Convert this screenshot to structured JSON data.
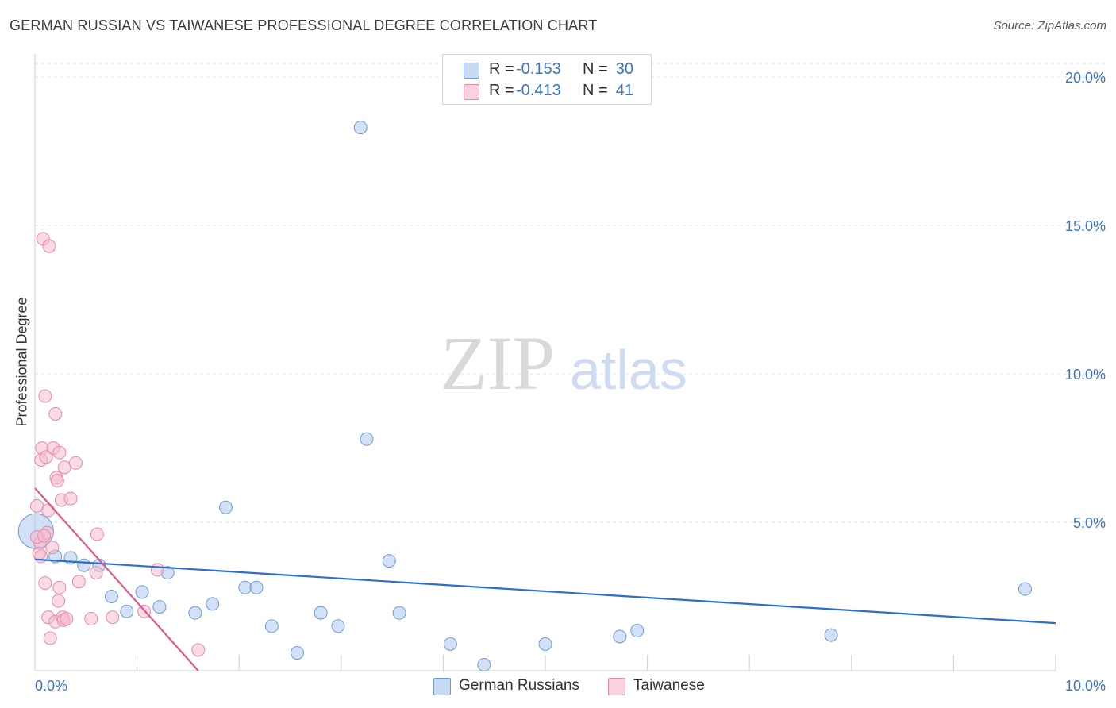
{
  "header": {
    "title": "GERMAN RUSSIAN VS TAIWANESE PROFESSIONAL DEGREE CORRELATION CHART",
    "source": "Source: ZipAtlas.com"
  },
  "watermark": {
    "zip": "ZIP",
    "atlas": "atlas"
  },
  "legend_top": {
    "rows": [
      {
        "r_label": "R =",
        "r_value": "-0.153",
        "n_label": "N =",
        "n_value": "30",
        "color": "#aec8ee"
      },
      {
        "r_label": "R =",
        "r_value": "-0.413",
        "n_label": "N =",
        "n_value": "41",
        "color": "#f6bcd0"
      }
    ]
  },
  "legend_bottom": {
    "items": [
      {
        "label": "German Russians",
        "color": "#aec8ee"
      },
      {
        "label": "Taiwanese",
        "color": "#f6bcd0"
      }
    ]
  },
  "chart_data": {
    "type": "scatter",
    "title": "GERMAN RUSSIAN VS TAIWANESE PROFESSIONAL DEGREE CORRELATION CHART",
    "xlabel": "",
    "ylabel": "Professional Degree",
    "xlim": [
      0,
      10
    ],
    "ylim": [
      0,
      20
    ],
    "x_tick_labels": [
      "0.0%",
      "10.0%"
    ],
    "y_tick_labels": [
      {
        "value": 20,
        "label": "20.0%"
      },
      {
        "value": 15,
        "label": "15.0%"
      },
      {
        "value": 10,
        "label": "10.0%"
      },
      {
        "value": 5,
        "label": "5.0%"
      }
    ],
    "grid": true,
    "series": [
      {
        "name": "German Russians",
        "color": "#aec8ee",
        "stroke": "#6f9ad6",
        "line_color": "#2b6fce",
        "trend": {
          "x0": 0,
          "y0": 3.75,
          "x1": 10,
          "y1": 1.6
        },
        "points": [
          {
            "x": 0.01,
            "y": 4.7,
            "big": true
          },
          {
            "x": 0.2,
            "y": 3.85
          },
          {
            "x": 0.35,
            "y": 3.8
          },
          {
            "x": 0.48,
            "y": 3.55
          },
          {
            "x": 0.63,
            "y": 3.55
          },
          {
            "x": 0.75,
            "y": 2.5
          },
          {
            "x": 0.9,
            "y": 2.0
          },
          {
            "x": 1.05,
            "y": 2.65
          },
          {
            "x": 1.22,
            "y": 2.15
          },
          {
            "x": 1.3,
            "y": 3.3
          },
          {
            "x": 1.57,
            "y": 1.95
          },
          {
            "x": 1.74,
            "y": 2.25
          },
          {
            "x": 1.87,
            "y": 5.5
          },
          {
            "x": 2.06,
            "y": 2.8
          },
          {
            "x": 2.17,
            "y": 2.8
          },
          {
            "x": 2.32,
            "y": 1.5
          },
          {
            "x": 2.57,
            "y": 0.6
          },
          {
            "x": 2.8,
            "y": 1.95
          },
          {
            "x": 2.97,
            "y": 1.5
          },
          {
            "x": 3.19,
            "y": 18.3
          },
          {
            "x": 3.25,
            "y": 7.8
          },
          {
            "x": 3.47,
            "y": 3.7
          },
          {
            "x": 3.57,
            "y": 1.95
          },
          {
            "x": 4.07,
            "y": 0.9
          },
          {
            "x": 4.4,
            "y": 0.2
          },
          {
            "x": 5.0,
            "y": 0.9
          },
          {
            "x": 5.73,
            "y": 1.15
          },
          {
            "x": 5.9,
            "y": 1.35
          },
          {
            "x": 7.8,
            "y": 1.2
          },
          {
            "x": 9.7,
            "y": 2.75
          }
        ]
      },
      {
        "name": "Taiwanese",
        "color": "#f6bcd0",
        "stroke": "#e88aaa",
        "line_color": "#e2578a",
        "trend": {
          "x0": 0,
          "y0": 6.15,
          "x1": 1.6,
          "y1": 0.0
        },
        "points": [
          {
            "x": 0.02,
            "y": 5.55
          },
          {
            "x": 0.05,
            "y": 4.3
          },
          {
            "x": 0.06,
            "y": 7.1
          },
          {
            "x": 0.07,
            "y": 7.5
          },
          {
            "x": 0.06,
            "y": 3.85
          },
          {
            "x": 0.08,
            "y": 14.55
          },
          {
            "x": 0.12,
            "y": 4.65
          },
          {
            "x": 0.11,
            "y": 7.2
          },
          {
            "x": 0.1,
            "y": 2.95
          },
          {
            "x": 0.1,
            "y": 9.25
          },
          {
            "x": 0.14,
            "y": 14.3
          },
          {
            "x": 0.13,
            "y": 5.4
          },
          {
            "x": 0.13,
            "y": 1.8
          },
          {
            "x": 0.15,
            "y": 1.1
          },
          {
            "x": 0.17,
            "y": 4.15
          },
          {
            "x": 0.18,
            "y": 7.5
          },
          {
            "x": 0.2,
            "y": 8.65
          },
          {
            "x": 0.21,
            "y": 6.5
          },
          {
            "x": 0.22,
            "y": 6.4
          },
          {
            "x": 0.2,
            "y": 1.65
          },
          {
            "x": 0.23,
            "y": 2.35
          },
          {
            "x": 0.24,
            "y": 2.8
          },
          {
            "x": 0.24,
            "y": 7.35
          },
          {
            "x": 0.26,
            "y": 5.75
          },
          {
            "x": 0.27,
            "y": 1.8
          },
          {
            "x": 0.28,
            "y": 1.7
          },
          {
            "x": 0.29,
            "y": 6.85
          },
          {
            "x": 0.31,
            "y": 1.75
          },
          {
            "x": 0.35,
            "y": 5.8
          },
          {
            "x": 0.4,
            "y": 7.0
          },
          {
            "x": 0.43,
            "y": 3.0
          },
          {
            "x": 0.55,
            "y": 1.75
          },
          {
            "x": 0.6,
            "y": 3.3
          },
          {
            "x": 0.61,
            "y": 4.6
          },
          {
            "x": 0.76,
            "y": 1.8
          },
          {
            "x": 1.07,
            "y": 2.0
          },
          {
            "x": 1.2,
            "y": 3.4
          },
          {
            "x": 1.6,
            "y": 0.7
          },
          {
            "x": 0.02,
            "y": 4.5
          },
          {
            "x": 0.04,
            "y": 3.95
          },
          {
            "x": 0.09,
            "y": 4.55
          }
        ]
      }
    ]
  }
}
